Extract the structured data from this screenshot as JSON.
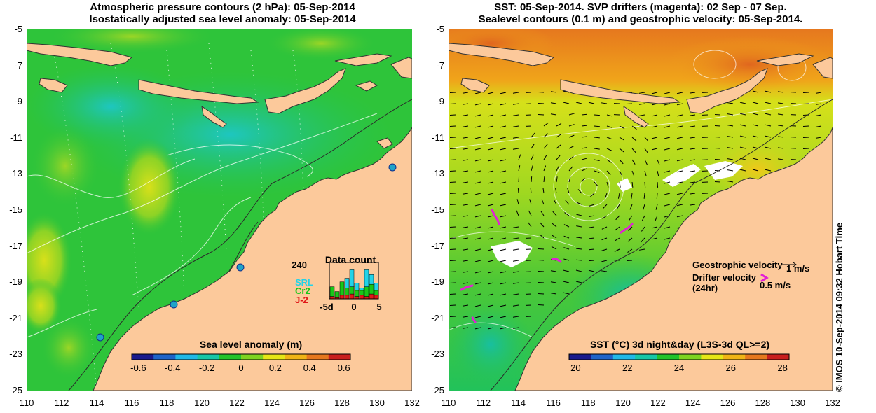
{
  "left_panel": {
    "title_line1": "Atmospheric pressure contours (2 hPa): 05-Sep-2014",
    "title_line2": "Isostatically adjusted sea level anomaly: 05-Sep-2014",
    "colorbar": {
      "label": "Sea level anomaly (m)",
      "ticks": [
        "-0.6",
        "-0.4",
        "-0.2",
        "0",
        "0.2",
        "0.4",
        "0.6"
      ],
      "colors": [
        "#1a1a8c",
        "#1e63c8",
        "#21b8e6",
        "#18c6a6",
        "#22c22b",
        "#7ed321",
        "#e6e616",
        "#f0b416",
        "#e6781e",
        "#c81e1e"
      ]
    },
    "inset": {
      "title": "Data count",
      "ymax_label": "240",
      "series": [
        {
          "name": "SRL",
          "color": "#22d3e8",
          "values": [
            0,
            0,
            0,
            40,
            70,
            30,
            10,
            70,
            40,
            30
          ]
        },
        {
          "name": "Cr2",
          "color": "#18c718",
          "values": [
            40,
            25,
            55,
            30,
            30,
            25,
            20,
            40,
            40,
            20
          ]
        },
        {
          "name": "J-2",
          "color": "#e01818",
          "values": [
            10,
            5,
            15,
            15,
            20,
            10,
            15,
            10,
            20,
            15
          ]
        }
      ],
      "x_ticks": [
        "-5d",
        "0",
        "5"
      ]
    },
    "x_ticks": [
      "110",
      "112",
      "114",
      "116",
      "118",
      "120",
      "122",
      "124",
      "126",
      "128",
      "130",
      "132"
    ],
    "y_ticks": [
      "-5",
      "-7",
      "-9",
      "-11",
      "-13",
      "-15",
      "-17",
      "-19",
      "-21",
      "-23",
      "-25"
    ]
  },
  "right_panel": {
    "title_line1": "SST: 05-Sep-2014. SVP drifters (magenta): 02 Sep - 07 Sep.",
    "title_line2": "Sealevel contours (0.1 m) and geostrophic velocity: 05-Sep-2014.",
    "colorbar": {
      "label": "SST (°C) 3d night&day (L3S-3d QL>=2)",
      "ticks": [
        "20",
        "22",
        "24",
        "26",
        "28"
      ],
      "colors": [
        "#1a1a8c",
        "#1e63c8",
        "#21b8e6",
        "#18c6a6",
        "#22c22b",
        "#7ed321",
        "#e6e616",
        "#f0b416",
        "#e6781e",
        "#c81e1e"
      ]
    },
    "legend": {
      "geostrophic_label": "Geostrophic velocity",
      "geostrophic_scale": "1 m/s",
      "drifter_label_line1": "Drifter velocity",
      "drifter_label_line2": "(24hr)",
      "drifter_scale": "0.5 m/s"
    },
    "x_ticks": [
      "110",
      "112",
      "114",
      "116",
      "118",
      "120",
      "122",
      "124",
      "126",
      "128",
      "130",
      "132"
    ],
    "y_ticks": [
      "-5",
      "-7",
      "-9",
      "-11",
      "-13",
      "-15",
      "-17",
      "-19",
      "-21",
      "-23",
      "-25"
    ]
  },
  "credit": "© IMOS 10-Sep-2014 09:32 Hobart Time",
  "colors": {
    "land": "#fcc99b",
    "ocean_green": "#2ec43a",
    "no_data": "#ffffff",
    "drifter": "#e21fd6"
  }
}
